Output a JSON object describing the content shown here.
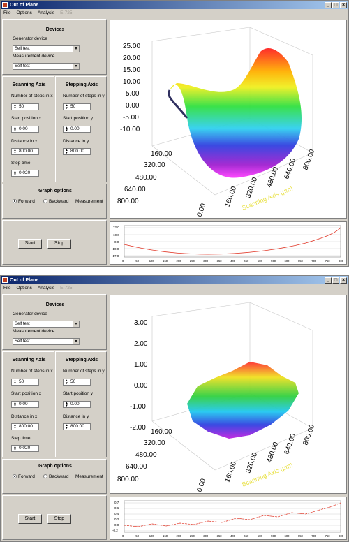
{
  "window": {
    "title": "Out of Plane",
    "menu": [
      "File",
      "Options",
      "Analysis",
      "E-725"
    ]
  },
  "devices": {
    "heading": "Devices",
    "generator_label": "Generator device",
    "generator_value": "Self test",
    "measurement_label": "Measurement device",
    "measurement_value": "Self test"
  },
  "scanning": {
    "heading": "Scanning Axis",
    "steps_label": "Number of steps in x",
    "steps_value": "50",
    "start_label": "Start position x",
    "start_value": "0.00",
    "distance_label": "Distance in x",
    "distance_value": "800.00",
    "steptime_label": "Step time",
    "steptime_value": "0.020"
  },
  "stepping": {
    "heading": "Stepping Axis",
    "steps_label": "Number of steps in y",
    "steps_value": "50",
    "start_label": "Start position y",
    "start_value": "0.00",
    "distance_label": "Distance in y",
    "distance_value": "800.00"
  },
  "graph_options": {
    "heading": "Graph options",
    "forward": "Forward",
    "backward": "Backward",
    "measurement": "Measurement"
  },
  "buttons": {
    "start": "Start",
    "stop": "Stop"
  },
  "plot1": {
    "z_ticks": [
      "25.00",
      "20.00",
      "15.00",
      "10.00",
      "5.00",
      "0.00",
      "-5.00",
      "-10.00"
    ],
    "y_ticks": [
      "800.00",
      "640.00",
      "480.00",
      "320.00",
      "160.00",
      "0.00"
    ],
    "x_ticks": [
      "0.00",
      "160.00",
      "320.00",
      "480.00",
      "640.00",
      "800.00"
    ],
    "x_axis_label": "Scanning Axis (µm)"
  },
  "plot2": {
    "z_ticks": [
      "3.00",
      "2.00",
      "1.00",
      "0.00",
      "-1.00",
      "-2.00"
    ],
    "y_ticks": [
      "800.00",
      "640.00",
      "480.00",
      "320.00",
      "160.00",
      "0.00"
    ],
    "x_ticks": [
      "0.00",
      "160.00",
      "320.00",
      "480.00",
      "640.00",
      "800.00"
    ],
    "x_axis_label": "Scanning Axis (µm)"
  },
  "strip1": {
    "y_ticks": [
      "22.0",
      "10.0",
      "0.0",
      "-10.0",
      "-17.0"
    ],
    "x_ticks": [
      "0",
      "50",
      "100",
      "150",
      "200",
      "250",
      "300",
      "350",
      "400",
      "450",
      "500",
      "550",
      "600",
      "650",
      "700",
      "750",
      "800"
    ]
  },
  "strip2": {
    "y_ticks": [
      "0.7",
      "0.6",
      "0.4",
      "0.2",
      "0.0",
      "-0.2"
    ],
    "x_ticks": [
      "0",
      "50",
      "100",
      "150",
      "200",
      "250",
      "300",
      "350",
      "400",
      "450",
      "500",
      "550",
      "600",
      "650",
      "700",
      "750",
      "800"
    ]
  },
  "colors": {
    "title_start": "#0a246a",
    "title_end": "#a6caf0",
    "face": "#d4d0c8",
    "axis_label": "#e8e040"
  }
}
